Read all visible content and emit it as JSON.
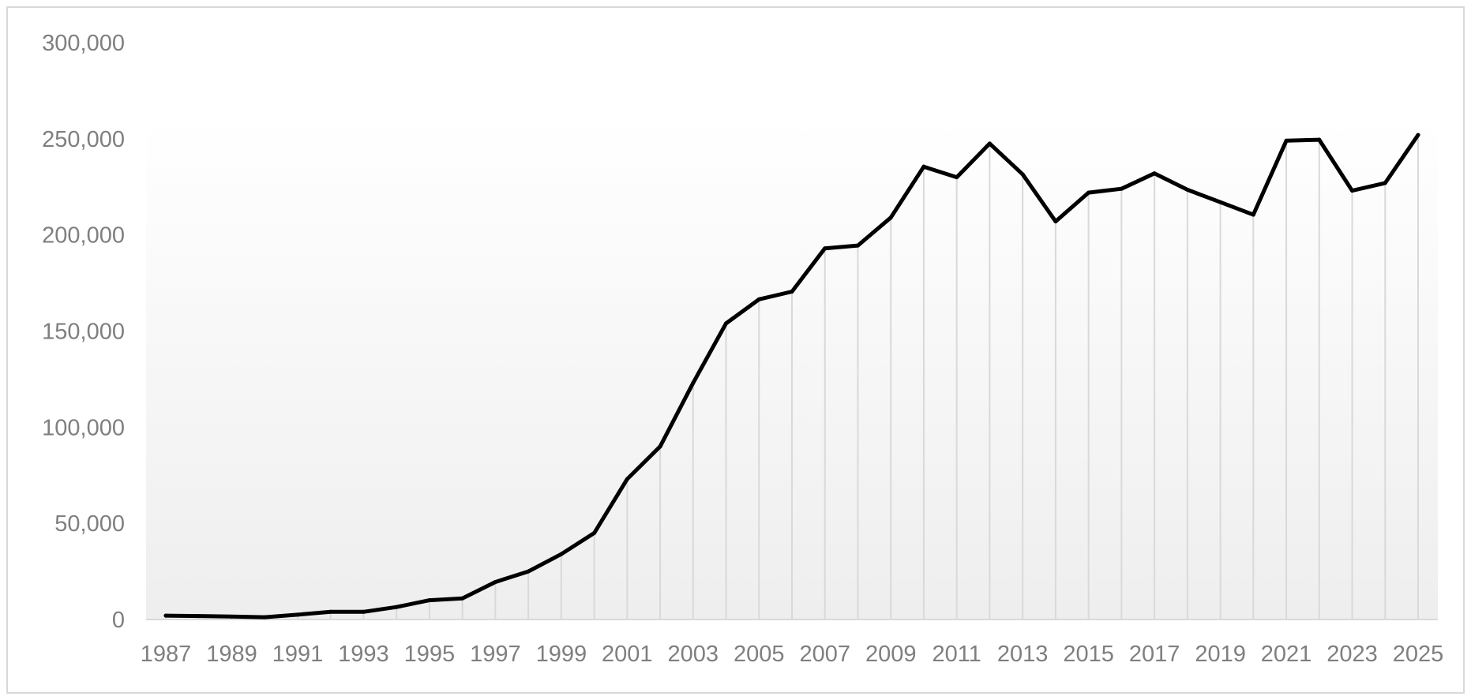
{
  "chart_data": {
    "type": "area",
    "title": "",
    "xlabel": "",
    "ylabel": "",
    "grid": "vertical drop lines at each data point",
    "legend": "none",
    "colors": {
      "line": "#000000",
      "dropline": "#d9d9d9",
      "fill_top": "#ffffff",
      "fill_bottom": "#eeeeee",
      "tick_text": "#7f7f7f"
    },
    "ylim": [
      0,
      300000
    ],
    "y_ticks": [
      "0",
      "50,000",
      "100,000",
      "150,000",
      "200,000",
      "250,000",
      "300,000"
    ],
    "x_tick_labels": [
      "1987",
      "1989",
      "1991",
      "1993",
      "1995",
      "1997",
      "1999",
      "2001",
      "2003",
      "2005",
      "2007",
      "2009",
      "2011",
      "2013",
      "2015",
      "2017",
      "2019",
      "2021",
      "2023",
      "2025"
    ],
    "x": [
      1987,
      1988,
      1989,
      1990,
      1991,
      1992,
      1993,
      1994,
      1995,
      1996,
      1997,
      1998,
      1999,
      2000,
      2001,
      2002,
      2003,
      2004,
      2005,
      2006,
      2007,
      2008,
      2009,
      2010,
      2011,
      2012,
      2013,
      2014,
      2015,
      2016,
      2017,
      2018,
      2019,
      2020,
      2021,
      2022,
      2023,
      2024,
      2025
    ],
    "series": [
      {
        "values": [
          2000,
          1800,
          1500,
          1200,
          2500,
          4000,
          4000,
          6500,
          10000,
          11000,
          19500,
          25000,
          34000,
          45000,
          73000,
          90000,
          123000,
          154000,
          166500,
          170500,
          193000,
          194500,
          209000,
          235500,
          230000,
          247500,
          231500,
          207000,
          222000,
          224000,
          232000,
          223500,
          217000,
          210500,
          249000,
          249500,
          223000,
          227000,
          252000
        ]
      }
    ]
  }
}
